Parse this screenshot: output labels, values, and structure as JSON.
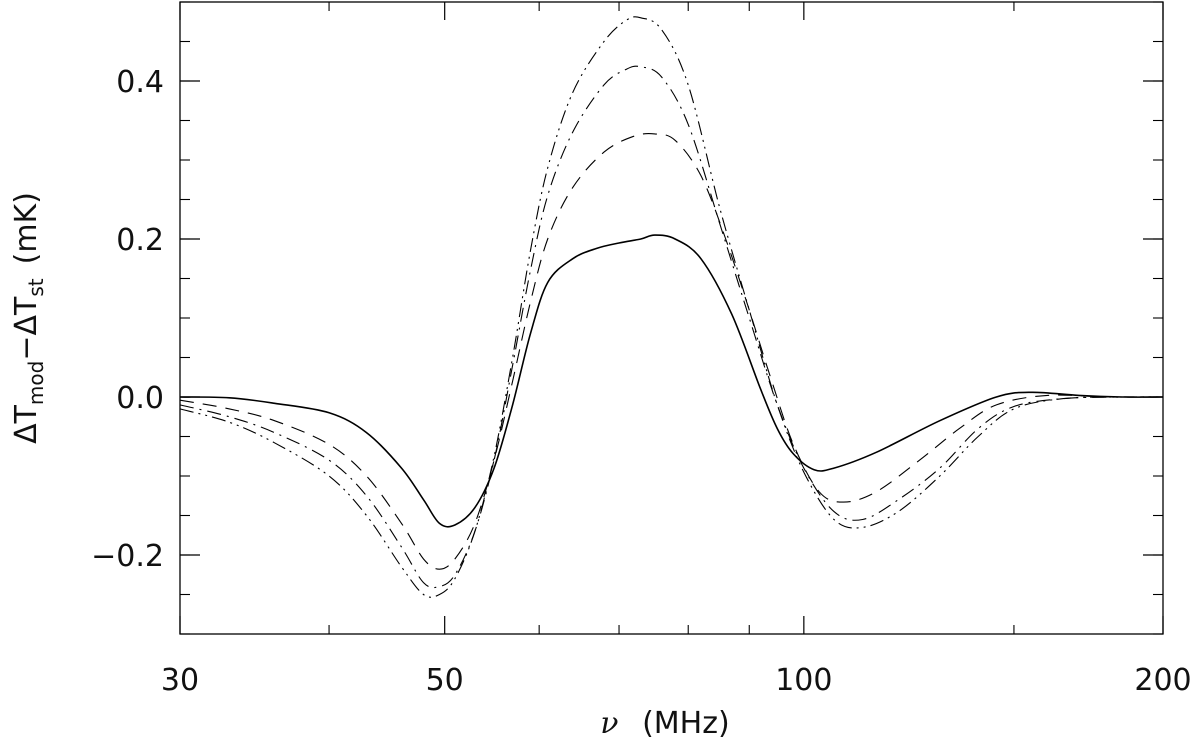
{
  "chart_data": {
    "type": "line",
    "xlabel": {
      "symbol": "ν",
      "unit": "(MHz)"
    },
    "ylabel": {
      "delta": "Δ",
      "T": "T",
      "sub_mod": "mod",
      "minus": "−",
      "sub_st": "st",
      "unit": "(mK)"
    },
    "xscale": "log",
    "xlim": [
      30,
      200
    ],
    "ylim": [
      -0.3,
      0.5
    ],
    "xtick_labels": [
      {
        "value": 30,
        "label": "30"
      },
      {
        "value": 50,
        "label": "50"
      },
      {
        "value": 100,
        "label": "100"
      },
      {
        "value": 200,
        "label": "200"
      }
    ],
    "ytick_labels": [
      {
        "value": -0.2,
        "label": "−0.2"
      },
      {
        "value": 0.0,
        "label": "0.0"
      },
      {
        "value": 0.2,
        "label": "0.2"
      },
      {
        "value": 0.4,
        "label": "0.4"
      }
    ],
    "x_minor_ticks": [
      40,
      60,
      70,
      80,
      90,
      150
    ],
    "y_minor_step": 0.05,
    "grid": false,
    "series": [
      {
        "linestyle": "solid",
        "points": [
          [
            30,
            0.0
          ],
          [
            33,
            -0.001
          ],
          [
            36,
            -0.008
          ],
          [
            40,
            -0.02
          ],
          [
            43,
            -0.045
          ],
          [
            46,
            -0.09
          ],
          [
            48,
            -0.13
          ],
          [
            49.5,
            -0.16
          ],
          [
            51,
            -0.162
          ],
          [
            53,
            -0.14
          ],
          [
            55,
            -0.09
          ],
          [
            57,
            -0.01
          ],
          [
            59,
            0.08
          ],
          [
            61,
            0.145
          ],
          [
            64,
            0.175
          ],
          [
            67,
            0.188
          ],
          [
            70,
            0.195
          ],
          [
            73,
            0.2
          ],
          [
            75,
            0.205
          ],
          [
            78,
            0.2
          ],
          [
            82,
            0.175
          ],
          [
            87,
            0.105
          ],
          [
            92,
            0.01
          ],
          [
            95,
            -0.04
          ],
          [
            98,
            -0.072
          ],
          [
            102,
            -0.092
          ],
          [
            106,
            -0.09
          ],
          [
            115,
            -0.07
          ],
          [
            130,
            -0.03
          ],
          [
            145,
            0.0
          ],
          [
            155,
            0.006
          ],
          [
            170,
            0.002
          ],
          [
            185,
            0.0
          ],
          [
            200,
            0.0
          ]
        ]
      },
      {
        "linestyle": "dashed",
        "points": [
          [
            30,
            -0.004
          ],
          [
            33,
            -0.015
          ],
          [
            36,
            -0.03
          ],
          [
            40,
            -0.06
          ],
          [
            43,
            -0.1
          ],
          [
            46,
            -0.16
          ],
          [
            48,
            -0.205
          ],
          [
            49.5,
            -0.218
          ],
          [
            51,
            -0.205
          ],
          [
            53,
            -0.16
          ],
          [
            55,
            -0.08
          ],
          [
            57,
            0.02
          ],
          [
            59,
            0.12
          ],
          [
            61,
            0.2
          ],
          [
            64,
            0.265
          ],
          [
            68,
            0.31
          ],
          [
            72,
            0.33
          ],
          [
            75,
            0.333
          ],
          [
            78,
            0.325
          ],
          [
            82,
            0.28
          ],
          [
            86,
            0.2
          ],
          [
            90,
            0.11
          ],
          [
            94,
            0.02
          ],
          [
            98,
            -0.06
          ],
          [
            103,
            -0.12
          ],
          [
            108,
            -0.133
          ],
          [
            115,
            -0.12
          ],
          [
            125,
            -0.08
          ],
          [
            135,
            -0.04
          ],
          [
            145,
            -0.01
          ],
          [
            160,
            0.002
          ],
          [
            180,
            0.0
          ],
          [
            200,
            0.0
          ]
        ]
      },
      {
        "linestyle": "dash-dot",
        "points": [
          [
            30,
            -0.01
          ],
          [
            33,
            -0.025
          ],
          [
            36,
            -0.045
          ],
          [
            40,
            -0.08
          ],
          [
            43,
            -0.125
          ],
          [
            46,
            -0.19
          ],
          [
            48,
            -0.235
          ],
          [
            49.5,
            -0.24
          ],
          [
            51,
            -0.225
          ],
          [
            53,
            -0.17
          ],
          [
            55,
            -0.08
          ],
          [
            57,
            0.04
          ],
          [
            59,
            0.16
          ],
          [
            61,
            0.255
          ],
          [
            64,
            0.335
          ],
          [
            68,
            0.395
          ],
          [
            71,
            0.415
          ],
          [
            73,
            0.418
          ],
          [
            76,
            0.405
          ],
          [
            80,
            0.345
          ],
          [
            85,
            0.22
          ],
          [
            90,
            0.1
          ],
          [
            95,
            -0.01
          ],
          [
            100,
            -0.09
          ],
          [
            106,
            -0.145
          ],
          [
            112,
            -0.155
          ],
          [
            120,
            -0.13
          ],
          [
            130,
            -0.09
          ],
          [
            140,
            -0.04
          ],
          [
            150,
            -0.012
          ],
          [
            165,
            -0.002
          ],
          [
            185,
            0.0
          ],
          [
            200,
            0.0
          ]
        ]
      },
      {
        "linestyle": "dash-dot-dot",
        "points": [
          [
            30,
            -0.015
          ],
          [
            33,
            -0.032
          ],
          [
            36,
            -0.058
          ],
          [
            40,
            -0.1
          ],
          [
            43,
            -0.15
          ],
          [
            46,
            -0.215
          ],
          [
            48,
            -0.25
          ],
          [
            49.5,
            -0.25
          ],
          [
            51,
            -0.23
          ],
          [
            53,
            -0.17
          ],
          [
            55,
            -0.075
          ],
          [
            57,
            0.05
          ],
          [
            59,
            0.185
          ],
          [
            61,
            0.29
          ],
          [
            64,
            0.385
          ],
          [
            68,
            0.45
          ],
          [
            71,
            0.477
          ],
          [
            73,
            0.48
          ],
          [
            76,
            0.465
          ],
          [
            80,
            0.395
          ],
          [
            85,
            0.24
          ],
          [
            90,
            0.11
          ],
          [
            95,
            -0.01
          ],
          [
            100,
            -0.095
          ],
          [
            106,
            -0.155
          ],
          [
            112,
            -0.165
          ],
          [
            120,
            -0.145
          ],
          [
            130,
            -0.1
          ],
          [
            140,
            -0.05
          ],
          [
            150,
            -0.015
          ],
          [
            165,
            -0.002
          ],
          [
            185,
            0.0
          ],
          [
            200,
            0.0
          ]
        ]
      }
    ]
  }
}
